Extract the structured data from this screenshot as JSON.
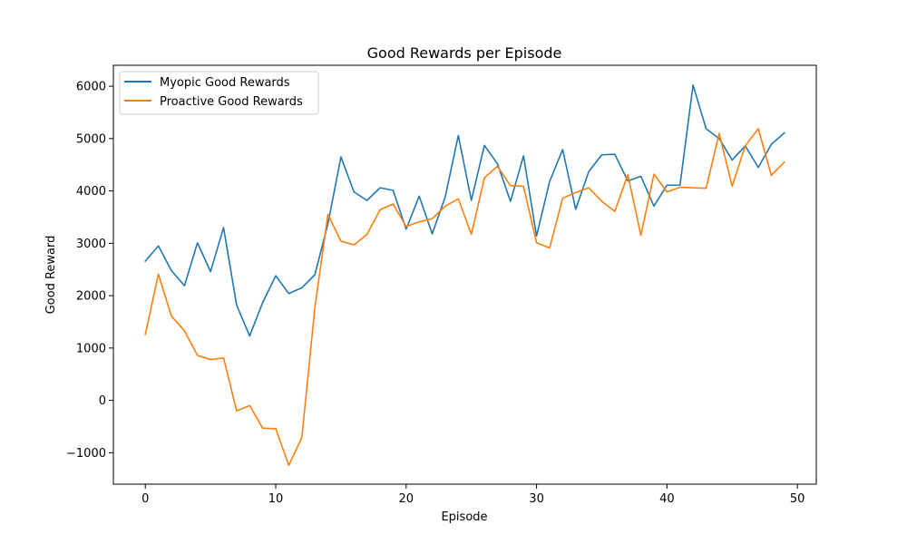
{
  "chart_data": {
    "type": "line",
    "title": "Good Rewards per Episode",
    "xlabel": "Episode",
    "ylabel": "Good Reward",
    "xlim": [
      -2.45,
      51.45
    ],
    "ylim": [
      -1600,
      6400
    ],
    "xticks": [
      0,
      10,
      20,
      30,
      40,
      50
    ],
    "yticks": [
      -1000,
      0,
      1000,
      2000,
      3000,
      4000,
      5000,
      6000
    ],
    "grid": false,
    "legend_position": "upper-left",
    "x": [
      0,
      1,
      2,
      3,
      4,
      5,
      6,
      7,
      8,
      9,
      10,
      11,
      12,
      13,
      14,
      15,
      16,
      17,
      18,
      19,
      20,
      21,
      22,
      23,
      24,
      25,
      26,
      27,
      28,
      29,
      30,
      31,
      32,
      33,
      34,
      35,
      36,
      37,
      38,
      39,
      40,
      41,
      42,
      43,
      44,
      45,
      46,
      47,
      48,
      49
    ],
    "series": [
      {
        "name": "Myopic Good Rewards",
        "color": "#1f77b4",
        "values": [
          2660,
          2950,
          2480,
          2190,
          3010,
          2460,
          3300,
          1820,
          1230,
          1870,
          2380,
          2040,
          2150,
          2400,
          3370,
          4650,
          3980,
          3820,
          4060,
          4010,
          3270,
          3900,
          3180,
          3890,
          5060,
          3820,
          4870,
          4520,
          3800,
          4670,
          3140,
          4180,
          4790,
          3650,
          4370,
          4690,
          4700,
          4190,
          4280,
          3710,
          4110,
          4110,
          6020,
          5190,
          5000,
          4590,
          4860,
          4450,
          4890,
          5110
        ]
      },
      {
        "name": "Proactive Good Rewards",
        "color": "#ff7f0e",
        "values": [
          1260,
          2410,
          1610,
          1330,
          860,
          780,
          810,
          -200,
          -100,
          -530,
          -540,
          -1240,
          -710,
          1770,
          3550,
          3040,
          2970,
          3170,
          3640,
          3750,
          3320,
          3410,
          3470,
          3710,
          3850,
          3170,
          4250,
          4470,
          4100,
          4090,
          3010,
          2910,
          3860,
          3970,
          4060,
          3800,
          3610,
          4310,
          3150,
          4320,
          3980,
          4070,
          4060,
          4050,
          5100,
          4090,
          4860,
          5190,
          4300,
          4550
        ]
      }
    ]
  }
}
